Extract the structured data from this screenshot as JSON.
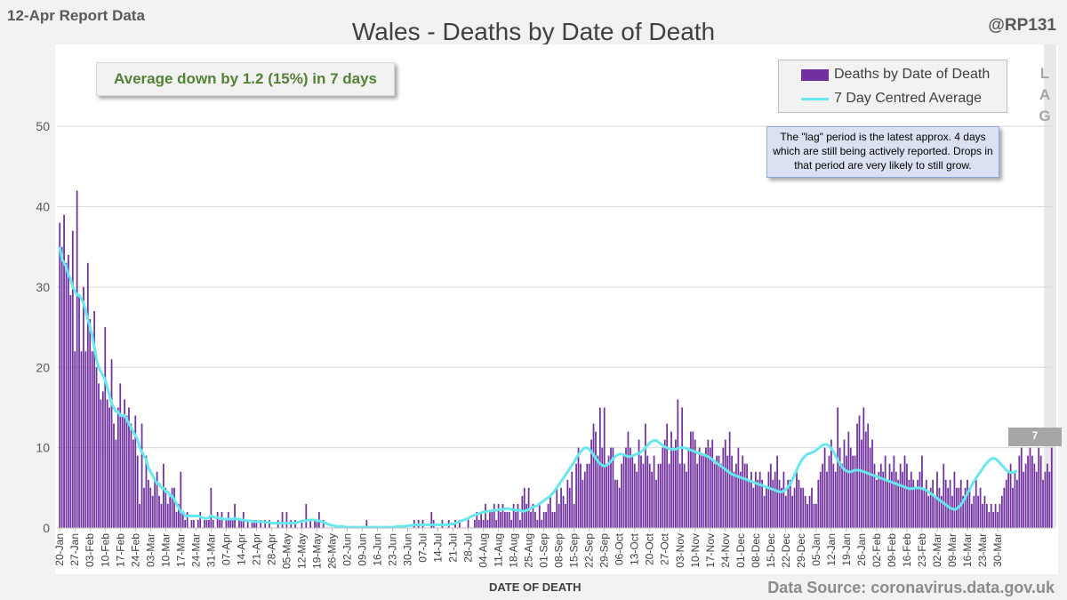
{
  "report_date": "12-Apr Report Data",
  "handle": "@RP131",
  "average_note": "Average down by 1.2 (15%) in 7 days",
  "lag_note": "The \"lag\" period is the latest approx. 4 days which are still being actively reported.  Drops in that period are very likely to still grow.",
  "lag_letters": [
    "L",
    "A",
    "G"
  ],
  "last_value_label": "7",
  "source": "Data Source: coronavirus.data.gov.uk",
  "colors": {
    "bars": "#7030a0",
    "average": "#66e8f0",
    "gridline": "#d9d9d9",
    "lag_band": "#d9d9d9"
  },
  "chart_data": {
    "type": "bar",
    "title": "Wales - Deaths by Date of Death",
    "xlabel": "DATE OF DEATH",
    "ylabel": "",
    "ylim": [
      0,
      55
    ],
    "yticks": [
      0,
      10,
      20,
      30,
      40,
      50
    ],
    "start_date": "20-Jan",
    "tick_labels": [
      "20-Jan",
      "27-Jan",
      "03-Feb",
      "10-Feb",
      "17-Feb",
      "24-Feb",
      "03-Mar",
      "10-Mar",
      "17-Mar",
      "24-Mar",
      "31-Mar",
      "07-Apr",
      "14-Apr",
      "21-Apr",
      "28-Apr",
      "05-May",
      "12-May",
      "19-May",
      "26-May",
      "02-Jun",
      "09-Jun",
      "16-Jun",
      "23-Jun",
      "30-Jun",
      "07-Jul",
      "14-Jul",
      "21-Jul",
      "28-Jul",
      "04-Aug",
      "11-Aug",
      "18-Aug",
      "25-Aug",
      "01-Sep",
      "08-Sep",
      "15-Sep",
      "22-Sep",
      "29-Sep",
      "06-Oct",
      "13-Oct",
      "20-Oct",
      "27-Oct",
      "03-Nov",
      "10-Nov",
      "17-Nov",
      "24-Nov",
      "01-Dec",
      "08-Dec",
      "15-Dec",
      "22-Dec",
      "29-Dec",
      "05-Jan",
      "12-Jan",
      "19-Jan",
      "26-Jan",
      "02-Feb",
      "09-Feb",
      "16-Feb",
      "23-Feb",
      "02-Mar",
      "09-Mar",
      "16-Mar",
      "23-Mar",
      "30-Mar"
    ],
    "legend": [
      "Deaths by Date of Death",
      "7 Day Centred Average"
    ],
    "lag_days": 4,
    "series": [
      {
        "name": "Deaths by Date of Death",
        "type": "bar",
        "values": [
          38,
          35,
          39,
          33,
          34,
          29,
          37,
          22,
          42,
          29,
          22,
          30,
          22,
          33,
          26,
          22,
          27,
          20,
          18,
          16,
          17,
          25,
          16,
          15,
          21,
          13,
          11,
          15,
          18,
          14,
          16,
          14,
          15,
          13,
          11,
          14,
          9,
          3,
          13,
          5,
          9,
          6,
          5,
          4,
          6,
          7,
          4,
          3,
          8,
          5,
          3,
          4,
          5,
          5,
          2,
          3,
          7,
          2,
          1,
          2,
          0,
          1,
          1,
          0,
          1,
          2,
          0,
          1,
          1,
          1,
          5,
          1,
          0,
          2,
          1,
          2,
          0,
          1,
          2,
          1,
          1,
          3,
          0,
          1,
          1,
          2,
          0,
          1,
          0,
          1,
          1,
          1,
          0,
          1,
          0,
          1,
          0,
          1,
          0,
          0,
          0,
          1,
          0,
          2,
          0,
          2,
          0,
          1,
          0,
          1,
          0,
          0,
          1,
          0,
          3,
          0,
          1,
          0,
          1,
          1,
          2,
          0,
          1,
          0,
          0,
          0,
          0,
          0,
          0,
          0,
          0,
          0,
          0,
          0,
          0,
          0,
          0,
          0,
          0,
          0,
          0,
          0,
          1,
          0,
          0,
          0,
          0,
          0,
          0,
          0,
          0,
          0,
          0,
          0,
          0,
          0,
          0,
          0,
          0,
          0,
          0,
          0,
          0,
          0,
          1,
          0,
          1,
          0,
          1,
          0,
          0,
          0,
          2,
          1,
          0,
          0,
          0,
          1,
          0,
          0,
          1,
          0,
          0,
          1,
          0,
          1,
          0,
          0,
          0,
          1,
          0,
          0,
          1,
          2,
          1,
          2,
          1,
          3,
          1,
          2,
          2,
          3,
          1,
          3,
          2,
          3,
          2,
          2,
          2,
          1,
          3,
          2,
          3,
          1,
          4,
          5,
          3,
          5,
          2,
          3,
          2,
          1,
          3,
          1,
          2,
          2,
          3,
          4,
          2,
          2,
          5,
          3,
          5,
          4,
          3,
          6,
          5,
          7,
          3,
          8,
          10,
          8,
          6,
          7,
          8,
          8,
          11,
          13,
          12,
          9,
          15,
          10,
          15,
          8,
          9,
          10,
          10,
          6,
          6,
          5,
          8,
          9,
          10,
          12,
          10,
          9,
          8,
          7,
          11,
          9,
          8,
          13,
          9,
          8,
          7,
          9,
          6,
          8,
          8,
          10,
          11,
          13,
          8,
          12,
          10,
          11,
          16,
          8,
          15,
          8,
          7,
          10,
          12,
          12,
          11,
          8,
          10,
          9,
          9,
          10,
          11,
          10,
          11,
          8,
          9,
          9,
          8,
          10,
          11,
          9,
          12,
          9,
          7,
          8,
          10,
          7,
          9,
          8,
          8,
          6,
          7,
          5,
          7,
          6,
          7,
          6,
          4,
          5,
          7,
          8,
          6,
          7,
          9,
          6,
          5,
          7,
          4,
          6,
          6,
          4,
          5,
          7,
          6,
          5,
          5,
          4,
          3,
          4,
          5,
          3,
          3,
          6,
          7,
          8,
          10,
          7,
          9,
          11,
          8,
          7,
          15,
          10,
          8,
          11,
          9,
          12,
          10,
          9,
          9,
          13,
          14,
          11,
          15,
          12,
          13,
          10,
          11,
          8,
          6,
          7,
          8,
          7,
          9,
          6,
          8,
          7,
          9,
          7,
          6,
          8,
          7,
          9,
          8,
          6,
          7,
          6,
          5,
          6,
          7,
          9,
          5,
          6,
          4,
          5,
          6,
          4,
          7,
          5,
          4,
          8,
          6,
          5,
          6,
          4,
          7,
          5,
          5,
          6,
          4,
          5,
          6,
          5,
          3,
          4,
          6,
          4,
          5,
          3,
          4,
          3,
          2,
          3,
          2,
          3,
          2,
          3,
          4,
          5,
          6,
          7,
          8,
          5,
          7,
          6,
          9,
          10,
          7,
          8,
          9,
          10,
          9,
          8,
          7,
          10,
          9,
          6,
          7,
          8,
          7,
          10
        ]
      },
      {
        "name": "7 Day Centred Average",
        "type": "line",
        "values": [
          35,
          33.5,
          33,
          32.5,
          31.5,
          31,
          30,
          29.5,
          29,
          29,
          28.5,
          28,
          27,
          26,
          25,
          24,
          22.5,
          21,
          20,
          19.5,
          19,
          18.5,
          17.5,
          16.5,
          15.5,
          15,
          14.5,
          14.5,
          14,
          14,
          14,
          13.5,
          13,
          12.5,
          12,
          11.5,
          11,
          10,
          9.5,
          9,
          8.5,
          7.5,
          7,
          6.5,
          6,
          5.5,
          5.5,
          5,
          5,
          4.5,
          4.5,
          4,
          4,
          3.5,
          3,
          2.5,
          2,
          2,
          1.5,
          1.5,
          1.5,
          1.5,
          1.5,
          1.5,
          1.5,
          1.4,
          1.3,
          1.2,
          1.2,
          1.3,
          1.5,
          1.4,
          1.3,
          1.3,
          1.2,
          1.2,
          1.1,
          1.1,
          1.1,
          1.1,
          1.1,
          1.2,
          1.1,
          1.1,
          1,
          1,
          0.9,
          0.9,
          0.9,
          0.8,
          0.8,
          0.8,
          0.8,
          0.8,
          0.8,
          0.7,
          0.7,
          0.7,
          0.6,
          0.6,
          0.6,
          0.6,
          0.6,
          0.6,
          0.6,
          0.6,
          0.6,
          0.6,
          0.6,
          0.6,
          0.7,
          0.8,
          0.8,
          0.9,
          0.9,
          1,
          1,
          1,
          1,
          0.9,
          0.9,
          0.8,
          0.7,
          0.6,
          0.5,
          0.4,
          0.3,
          0.3,
          0.2,
          0.2,
          0.2,
          0.2,
          0.1,
          0.1,
          0.1,
          0.1,
          0.1,
          0.1,
          0.1,
          0.1,
          0.1,
          0.1,
          0.1,
          0.1,
          0.1,
          0.1,
          0.1,
          0.1,
          0.1,
          0.1,
          0.1,
          0.1,
          0.1,
          0.1,
          0.1,
          0.1,
          0.2,
          0.2,
          0.2,
          0.2,
          0.2,
          0.3,
          0.3,
          0.3,
          0.4,
          0.4,
          0.4,
          0.4,
          0.4,
          0.4,
          0.4,
          0.4,
          0.4,
          0.4,
          0.4,
          0.4,
          0.4,
          0.4,
          0.4,
          0.4,
          0.4,
          0.5,
          0.5,
          0.6,
          0.7,
          0.8,
          0.9,
          1,
          1.1,
          1.2,
          1.4,
          1.5,
          1.6,
          1.7,
          1.8,
          1.9,
          2,
          2,
          2.1,
          2.1,
          2.2,
          2.2,
          2.2,
          2.3,
          2.3,
          2.3,
          2.4,
          2.4,
          2.4,
          2.3,
          2.3,
          2.2,
          2.2,
          2.2,
          2.1,
          2.1,
          2.2,
          2.3,
          2.5,
          2.6,
          2.7,
          2.8,
          3,
          3.2,
          3.4,
          3.6,
          3.8,
          4,
          4.3,
          4.6,
          5,
          5.4,
          5.8,
          6.2,
          6.6,
          7,
          7.4,
          7.8,
          8.2,
          8.7,
          9.1,
          9.5,
          9.8,
          10,
          10,
          9.8,
          9.5,
          9.1,
          8.7,
          8.3,
          8,
          7.8,
          7.7,
          7.8,
          8,
          8.3,
          8.6,
          8.9,
          9.1,
          9.2,
          9.2,
          9.1,
          9,
          8.9,
          8.9,
          9,
          9.1,
          9.2,
          9.3,
          9.5,
          9.7,
          10,
          10.3,
          10.6,
          10.8,
          10.9,
          10.9,
          10.7,
          10.5,
          10.3,
          10.1,
          10,
          9.9,
          9.8,
          9.8,
          9.8,
          9.9,
          10,
          10,
          10,
          9.9,
          9.8,
          9.7,
          9.6,
          9.5,
          9.4,
          9.3,
          9.2,
          9.1,
          9,
          8.9,
          8.7,
          8.5,
          8.3,
          8.1,
          7.9,
          7.7,
          7.5,
          7.3,
          7.1,
          6.9,
          6.7,
          6.6,
          6.5,
          6.4,
          6.3,
          6.2,
          6.1,
          6,
          5.9,
          5.8,
          5.7,
          5.6,
          5.5,
          5.4,
          5.3,
          5.2,
          5.1,
          5,
          4.9,
          4.8,
          4.7,
          4.6,
          4.5,
          4.5,
          4.6,
          4.8,
          5.1,
          5.5,
          6,
          6.6,
          7.2,
          7.8,
          8.3,
          8.7,
          9,
          9.2,
          9.3,
          9.4,
          9.5,
          9.7,
          9.9,
          10.1,
          10.3,
          10.4,
          10.4,
          10.2,
          9.9,
          9.5,
          9,
          8.5,
          8,
          7.6,
          7.3,
          7.1,
          7,
          7,
          7.1,
          7.2,
          7.2,
          7.2,
          7.1,
          7,
          6.9,
          6.8,
          6.7,
          6.6,
          6.5,
          6.4,
          6.3,
          6.2,
          6.1,
          6,
          5.9,
          5.8,
          5.7,
          5.6,
          5.5,
          5.4,
          5.3,
          5.2,
          5.1,
          5,
          4.9,
          4.9,
          4.9,
          5,
          5,
          5,
          4.9,
          4.8,
          4.7,
          4.5,
          4.3,
          4.1,
          3.9,
          3.7,
          3.5,
          3.3,
          3.1,
          2.9,
          2.7,
          2.5,
          2.4,
          2.3,
          2.4,
          2.6,
          2.9,
          3.3,
          3.8,
          4.3,
          4.8,
          5.3,
          5.8,
          6.2,
          6.6,
          7,
          7.4,
          7.8,
          8.1,
          8.4,
          8.6,
          8.7,
          8.6,
          8.4,
          8.1,
          7.8,
          7.5,
          7.2,
          7,
          6.9,
          6.9,
          7,
          7.1
        ]
      }
    ]
  }
}
